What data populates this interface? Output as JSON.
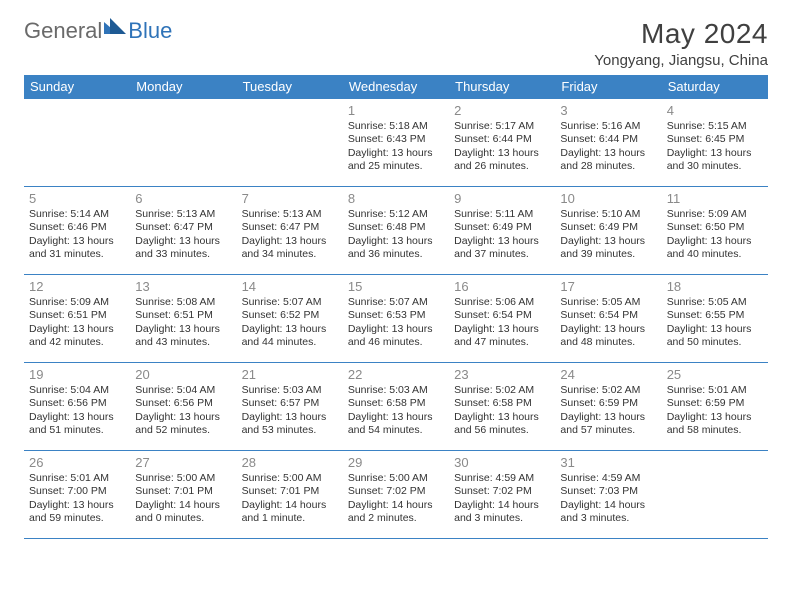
{
  "logo": {
    "general": "General",
    "blue": "Blue"
  },
  "title": "May 2024",
  "location": "Yongyang, Jiangsu, China",
  "accent_color": "#3b82c4",
  "text_color": "#333333",
  "weekdays": [
    "Sunday",
    "Monday",
    "Tuesday",
    "Wednesday",
    "Thursday",
    "Friday",
    "Saturday"
  ],
  "weeks": [
    [
      null,
      null,
      null,
      {
        "n": "1",
        "sr": "5:18 AM",
        "ss": "6:43 PM",
        "dl": "13 hours and 25 minutes."
      },
      {
        "n": "2",
        "sr": "5:17 AM",
        "ss": "6:44 PM",
        "dl": "13 hours and 26 minutes."
      },
      {
        "n": "3",
        "sr": "5:16 AM",
        "ss": "6:44 PM",
        "dl": "13 hours and 28 minutes."
      },
      {
        "n": "4",
        "sr": "5:15 AM",
        "ss": "6:45 PM",
        "dl": "13 hours and 30 minutes."
      }
    ],
    [
      {
        "n": "5",
        "sr": "5:14 AM",
        "ss": "6:46 PM",
        "dl": "13 hours and 31 minutes."
      },
      {
        "n": "6",
        "sr": "5:13 AM",
        "ss": "6:47 PM",
        "dl": "13 hours and 33 minutes."
      },
      {
        "n": "7",
        "sr": "5:13 AM",
        "ss": "6:47 PM",
        "dl": "13 hours and 34 minutes."
      },
      {
        "n": "8",
        "sr": "5:12 AM",
        "ss": "6:48 PM",
        "dl": "13 hours and 36 minutes."
      },
      {
        "n": "9",
        "sr": "5:11 AM",
        "ss": "6:49 PM",
        "dl": "13 hours and 37 minutes."
      },
      {
        "n": "10",
        "sr": "5:10 AM",
        "ss": "6:49 PM",
        "dl": "13 hours and 39 minutes."
      },
      {
        "n": "11",
        "sr": "5:09 AM",
        "ss": "6:50 PM",
        "dl": "13 hours and 40 minutes."
      }
    ],
    [
      {
        "n": "12",
        "sr": "5:09 AM",
        "ss": "6:51 PM",
        "dl": "13 hours and 42 minutes."
      },
      {
        "n": "13",
        "sr": "5:08 AM",
        "ss": "6:51 PM",
        "dl": "13 hours and 43 minutes."
      },
      {
        "n": "14",
        "sr": "5:07 AM",
        "ss": "6:52 PM",
        "dl": "13 hours and 44 minutes."
      },
      {
        "n": "15",
        "sr": "5:07 AM",
        "ss": "6:53 PM",
        "dl": "13 hours and 46 minutes."
      },
      {
        "n": "16",
        "sr": "5:06 AM",
        "ss": "6:54 PM",
        "dl": "13 hours and 47 minutes."
      },
      {
        "n": "17",
        "sr": "5:05 AM",
        "ss": "6:54 PM",
        "dl": "13 hours and 48 minutes."
      },
      {
        "n": "18",
        "sr": "5:05 AM",
        "ss": "6:55 PM",
        "dl": "13 hours and 50 minutes."
      }
    ],
    [
      {
        "n": "19",
        "sr": "5:04 AM",
        "ss": "6:56 PM",
        "dl": "13 hours and 51 minutes."
      },
      {
        "n": "20",
        "sr": "5:04 AM",
        "ss": "6:56 PM",
        "dl": "13 hours and 52 minutes."
      },
      {
        "n": "21",
        "sr": "5:03 AM",
        "ss": "6:57 PM",
        "dl": "13 hours and 53 minutes."
      },
      {
        "n": "22",
        "sr": "5:03 AM",
        "ss": "6:58 PM",
        "dl": "13 hours and 54 minutes."
      },
      {
        "n": "23",
        "sr": "5:02 AM",
        "ss": "6:58 PM",
        "dl": "13 hours and 56 minutes."
      },
      {
        "n": "24",
        "sr": "5:02 AM",
        "ss": "6:59 PM",
        "dl": "13 hours and 57 minutes."
      },
      {
        "n": "25",
        "sr": "5:01 AM",
        "ss": "6:59 PM",
        "dl": "13 hours and 58 minutes."
      }
    ],
    [
      {
        "n": "26",
        "sr": "5:01 AM",
        "ss": "7:00 PM",
        "dl": "13 hours and 59 minutes."
      },
      {
        "n": "27",
        "sr": "5:00 AM",
        "ss": "7:01 PM",
        "dl": "14 hours and 0 minutes."
      },
      {
        "n": "28",
        "sr": "5:00 AM",
        "ss": "7:01 PM",
        "dl": "14 hours and 1 minute."
      },
      {
        "n": "29",
        "sr": "5:00 AM",
        "ss": "7:02 PM",
        "dl": "14 hours and 2 minutes."
      },
      {
        "n": "30",
        "sr": "4:59 AM",
        "ss": "7:02 PM",
        "dl": "14 hours and 3 minutes."
      },
      {
        "n": "31",
        "sr": "4:59 AM",
        "ss": "7:03 PM",
        "dl": "14 hours and 3 minutes."
      },
      null
    ]
  ],
  "labels": {
    "sunrise": "Sunrise: ",
    "sunset": "Sunset: ",
    "daylight": "Daylight: "
  }
}
